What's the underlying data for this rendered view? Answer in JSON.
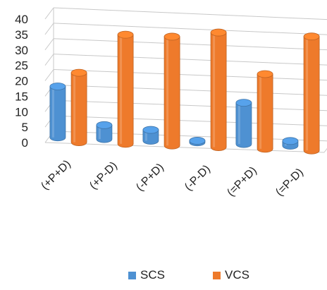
{
  "chart_data": {
    "type": "bar",
    "title": "",
    "xlabel": "",
    "ylabel": "",
    "categories": [
      "(+P+D)",
      "(+P-D)",
      "(-P+D)",
      "(-P-D)",
      "(=P+D)",
      "(=P-D)"
    ],
    "series": [
      {
        "name": "SCS",
        "values": [
          17,
          5,
          4,
          1,
          14,
          2
        ],
        "color": "#4e91d2"
      },
      {
        "name": "VCS",
        "values": [
          23,
          36,
          36,
          38,
          25,
          38
        ],
        "color": "#ee7a2b"
      }
    ],
    "ylim": [
      0,
      40
    ],
    "yticks": [
      "0",
      "5",
      "10",
      "15",
      "20",
      "25",
      "30",
      "35",
      "40"
    ],
    "grid": true,
    "legend_position": "bottom",
    "style": "3d-cylinder"
  }
}
